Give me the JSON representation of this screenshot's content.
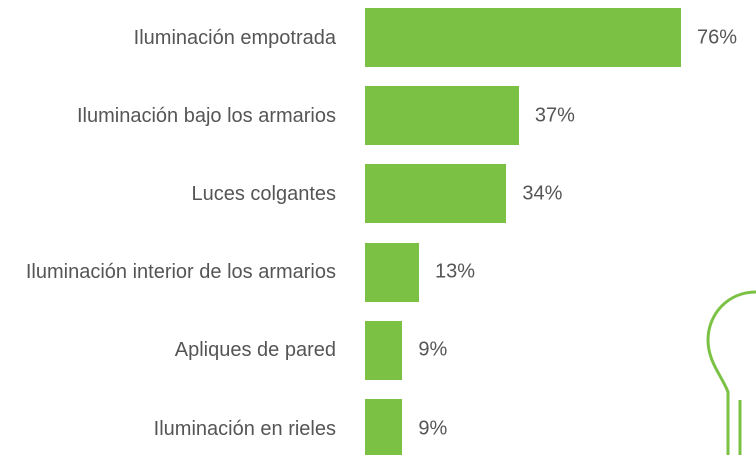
{
  "chart_data": {
    "type": "bar",
    "orientation": "horizontal",
    "categories": [
      "Iluminación empotrada",
      "Iluminación bajo los armarios",
      "Luces colgantes",
      "Iluminación interior de los armarios",
      "Apliques de pared",
      "Iluminación en rieles"
    ],
    "values": [
      76,
      37,
      34,
      13,
      9,
      9
    ],
    "value_labels": [
      "76%",
      "37%",
      "34%",
      "13%",
      "9%",
      "9%"
    ],
    "color": "#7bc144"
  }
}
